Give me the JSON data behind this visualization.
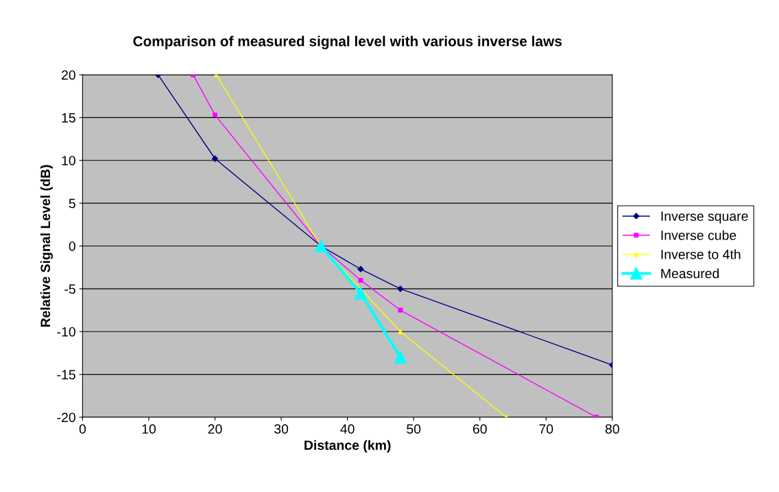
{
  "chart_data": {
    "type": "line",
    "title": "Comparison of measured signal level with various inverse laws",
    "xlabel": "Distance (km)",
    "ylabel": "Relative Signal Level (dB)",
    "xlim": [
      0,
      80
    ],
    "xticks": [
      0,
      10,
      20,
      30,
      40,
      50,
      60,
      70,
      80
    ],
    "ylim": [
      -20,
      20
    ],
    "yticks": [
      -20,
      -15,
      -10,
      -5,
      0,
      5,
      10,
      15,
      20
    ],
    "grid": "y",
    "legend": "right",
    "series": [
      {
        "name": "Inverse square",
        "color": "#000080",
        "marker": "diamond",
        "x": [
          11.4,
          20,
          36,
          42,
          48,
          80
        ],
        "values": [
          20,
          10.2,
          0,
          -2.7,
          -5,
          -13.9
        ]
      },
      {
        "name": "Inverse cube",
        "color": "#ff00ff",
        "marker": "square",
        "x": [
          16.7,
          20,
          36,
          42,
          48,
          77.6
        ],
        "values": [
          20,
          15.3,
          0,
          -4,
          -7.5,
          -20
        ]
      },
      {
        "name": "Inverse to 4th",
        "color": "#ffff00",
        "marker": "triangle",
        "x": [
          20.2,
          36,
          48,
          64
        ],
        "values": [
          20,
          0,
          -10,
          -20
        ]
      },
      {
        "name": "Measured",
        "color": "#00ffff",
        "marker": "triangle",
        "x": [
          36,
          42,
          48
        ],
        "values": [
          0,
          -5.5,
          -13
        ]
      }
    ]
  }
}
